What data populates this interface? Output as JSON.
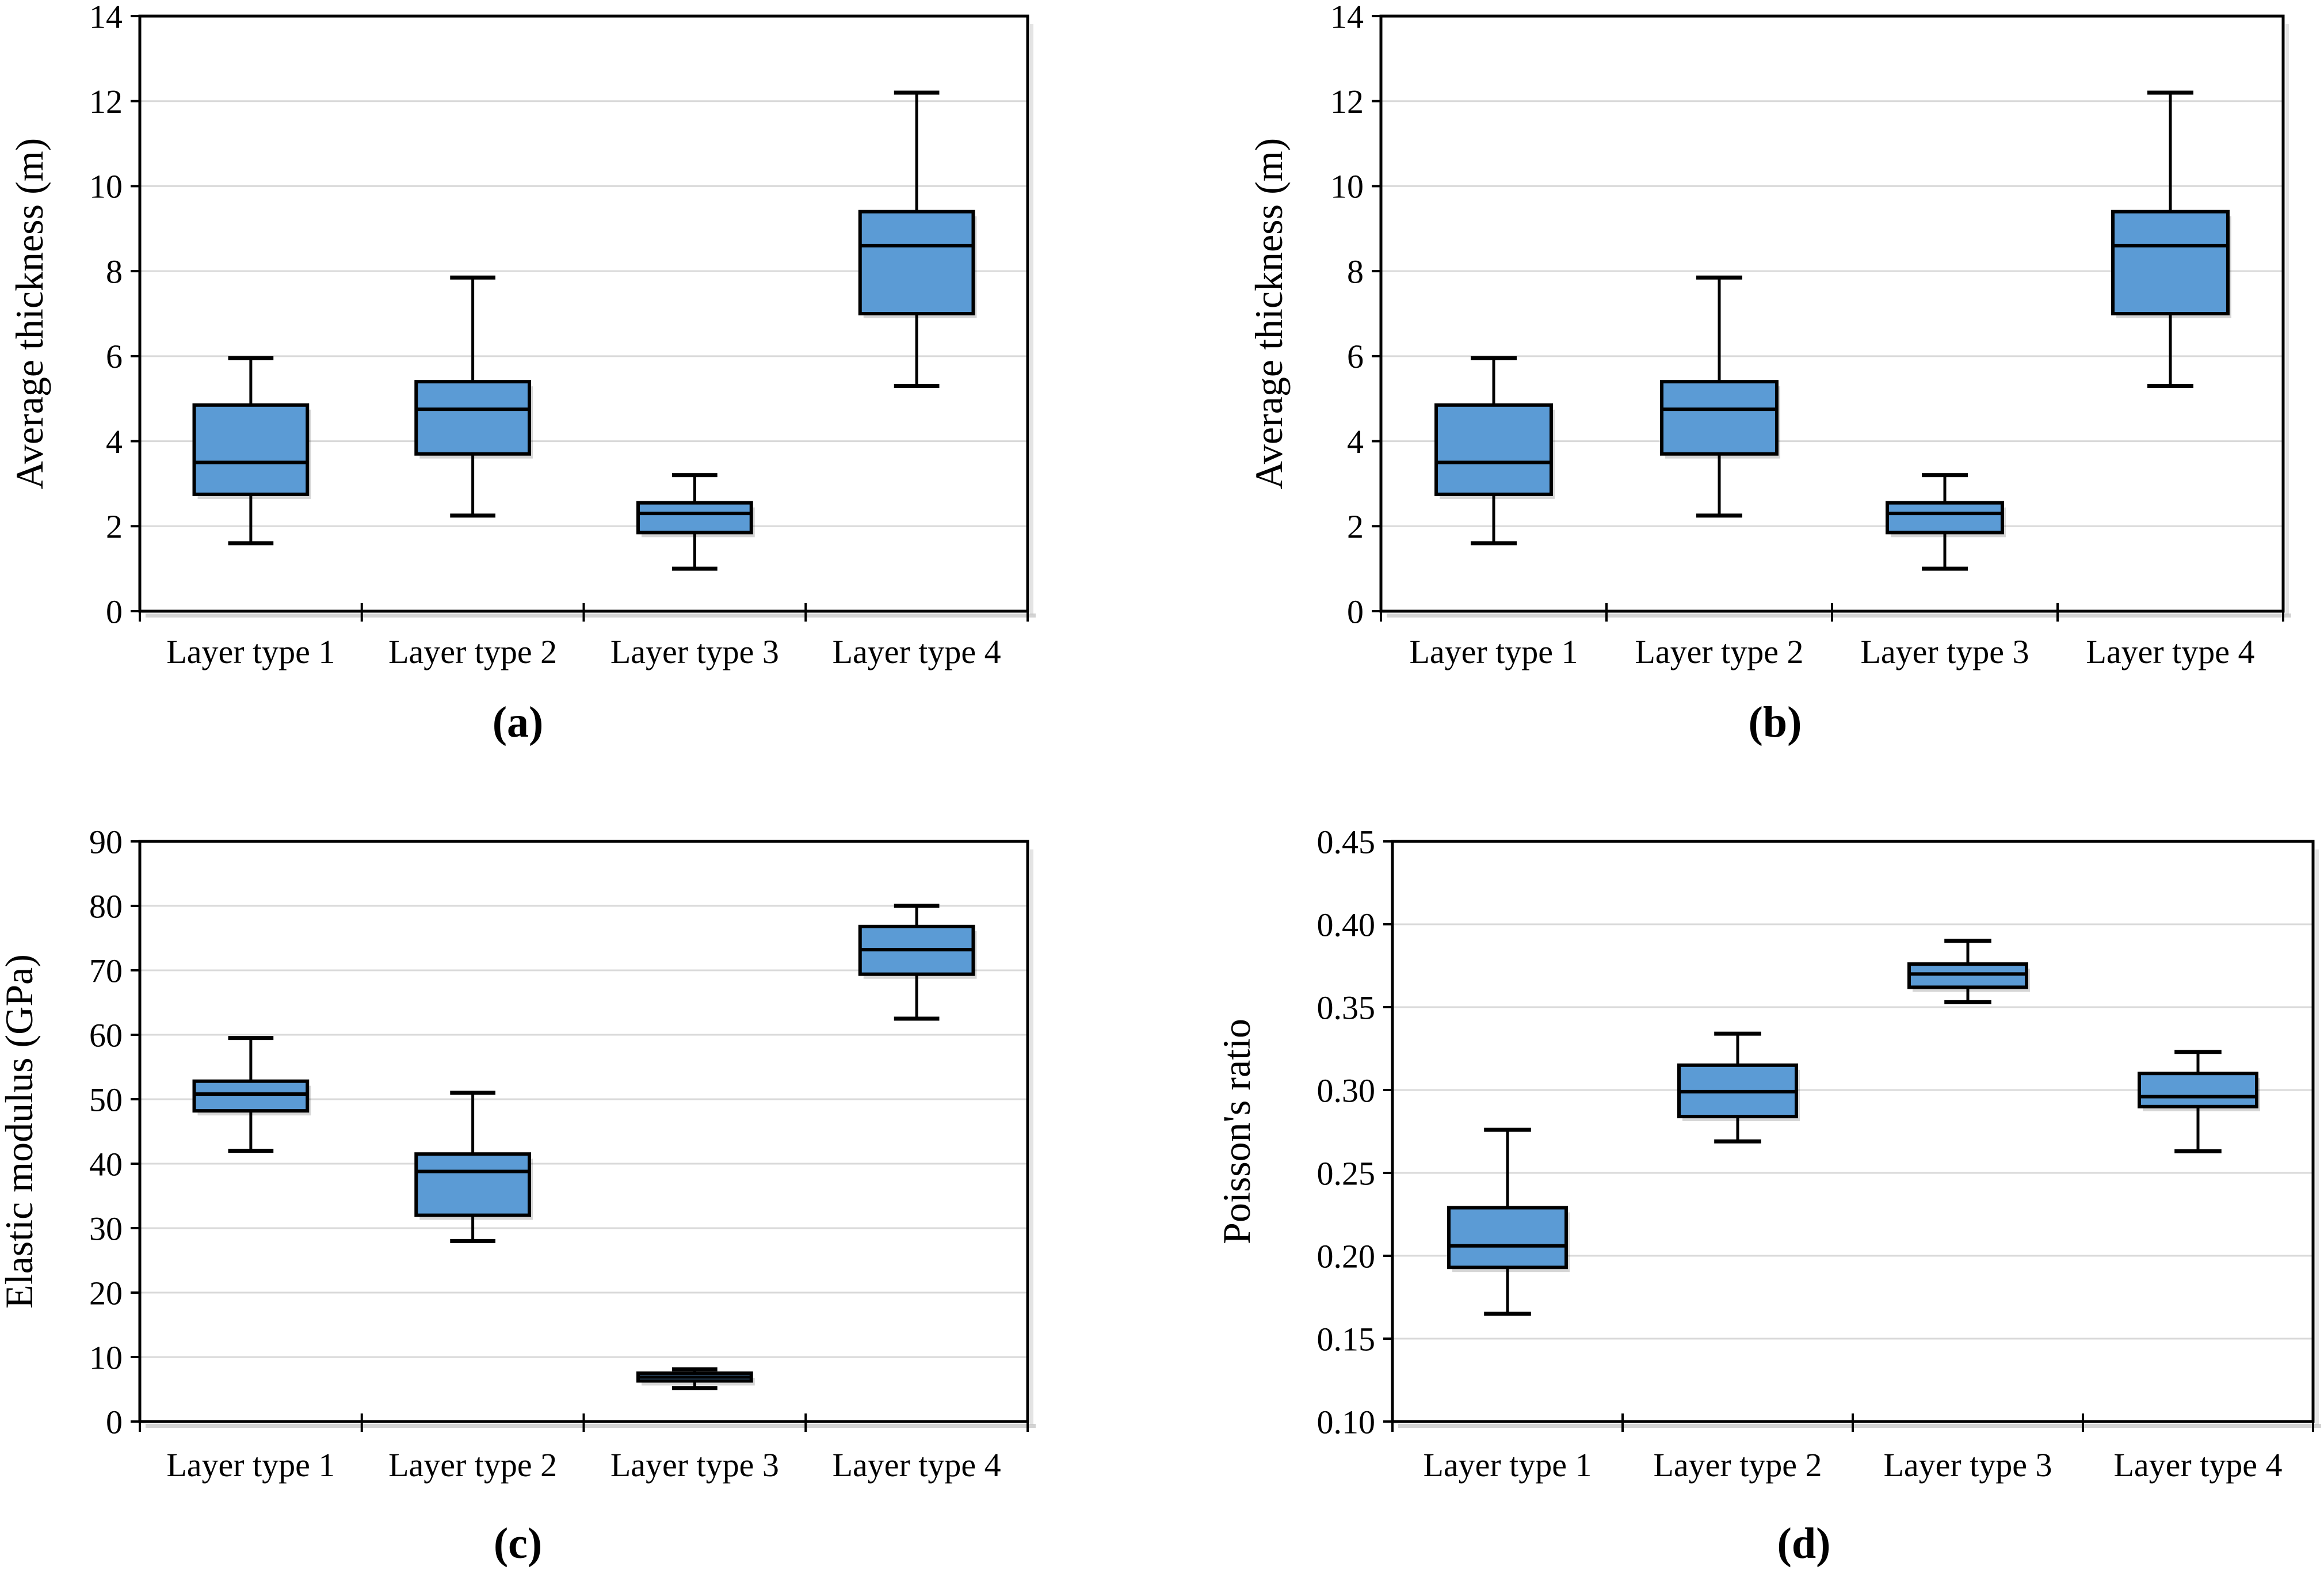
{
  "figure": {
    "background": "#ffffff",
    "panels": [
      "a",
      "b",
      "c",
      "d"
    ]
  },
  "style": {
    "box_fill": "#5B9BD5",
    "box_border": "#000000",
    "median_color": "#000000",
    "whisker_color": "#000000",
    "gridline_color": "#D9D9D9",
    "frame_color": "#000000",
    "shadow_color": "#C4C4C4",
    "text_color": "#000000"
  },
  "chart_data": [
    {
      "type": "boxplot",
      "panel": "a",
      "caption": "(a)",
      "ylabel": "Average thickness (m)",
      "ylim": [
        0,
        14
      ],
      "ytick_step": 2,
      "ytick_decimals": 0,
      "grid": true,
      "legend": "none",
      "categories": [
        "Layer type 1",
        "Layer type 2",
        "Layer type 3",
        "Layer type 4"
      ],
      "series": [
        {
          "category": "Layer type 1",
          "min": 1.6,
          "q1": 2.75,
          "median": 3.5,
          "q3": 4.85,
          "max": 5.95
        },
        {
          "category": "Layer type 2",
          "min": 2.25,
          "q1": 3.7,
          "median": 4.75,
          "q3": 5.4,
          "max": 7.85
        },
        {
          "category": "Layer type 3",
          "min": 1.0,
          "q1": 1.85,
          "median": 2.3,
          "q3": 2.55,
          "max": 3.2
        },
        {
          "category": "Layer type 4",
          "min": 5.3,
          "q1": 7.0,
          "median": 8.6,
          "q3": 9.4,
          "max": 12.2
        }
      ]
    },
    {
      "type": "boxplot",
      "panel": "b",
      "caption": "(b)",
      "ylabel": "Average thickness (m)",
      "ylim": [
        0,
        14
      ],
      "ytick_step": 2,
      "ytick_decimals": 0,
      "grid": true,
      "legend": "none",
      "categories": [
        "Layer type 1",
        "Layer type 2",
        "Layer type 3",
        "Layer type 4"
      ],
      "series": [
        {
          "category": "Layer type 1",
          "min": 1.6,
          "q1": 2.75,
          "median": 3.5,
          "q3": 4.85,
          "max": 5.95
        },
        {
          "category": "Layer type 2",
          "min": 2.25,
          "q1": 3.7,
          "median": 4.75,
          "q3": 5.4,
          "max": 7.85
        },
        {
          "category": "Layer type 3",
          "min": 1.0,
          "q1": 1.85,
          "median": 2.3,
          "q3": 2.55,
          "max": 3.2
        },
        {
          "category": "Layer type 4",
          "min": 5.3,
          "q1": 7.0,
          "median": 8.6,
          "q3": 9.4,
          "max": 12.2
        }
      ]
    },
    {
      "type": "boxplot",
      "panel": "c",
      "caption": "(c)",
      "ylabel": "Elastic modulus (GPa)",
      "ylim": [
        0,
        90
      ],
      "ytick_step": 10,
      "ytick_decimals": 0,
      "grid": true,
      "legend": "none",
      "categories": [
        "Layer type 1",
        "Layer type 2",
        "Layer type 3",
        "Layer type 4"
      ],
      "series": [
        {
          "category": "Layer type 1",
          "min": 42.0,
          "q1": 48.2,
          "median": 50.8,
          "q3": 52.8,
          "max": 59.5
        },
        {
          "category": "Layer type 2",
          "min": 28.0,
          "q1": 32.0,
          "median": 38.8,
          "q3": 41.5,
          "max": 51.0
        },
        {
          "category": "Layer type 3",
          "min": 5.2,
          "q1": 6.3,
          "median": 6.9,
          "q3": 7.5,
          "max": 8.1
        },
        {
          "category": "Layer type 4",
          "min": 62.5,
          "q1": 69.4,
          "median": 73.2,
          "q3": 76.8,
          "max": 80.0
        }
      ]
    },
    {
      "type": "boxplot",
      "panel": "d",
      "caption": "(d)",
      "ylabel": "Poisson's ratio",
      "ylim": [
        0.1,
        0.45
      ],
      "ytick_step": 0.05,
      "ytick_decimals": 2,
      "grid": true,
      "legend": "none",
      "categories": [
        "Layer type 1",
        "Layer type 2",
        "Layer type 3",
        "Layer type 4"
      ],
      "series": [
        {
          "category": "Layer type 1",
          "min": 0.165,
          "q1": 0.193,
          "median": 0.206,
          "q3": 0.229,
          "max": 0.276
        },
        {
          "category": "Layer type 2",
          "min": 0.269,
          "q1": 0.284,
          "median": 0.299,
          "q3": 0.315,
          "max": 0.334
        },
        {
          "category": "Layer type 3",
          "min": 0.353,
          "q1": 0.362,
          "median": 0.37,
          "q3": 0.376,
          "max": 0.39
        },
        {
          "category": "Layer type 4",
          "min": 0.263,
          "q1": 0.29,
          "median": 0.296,
          "q3": 0.31,
          "max": 0.323
        }
      ]
    }
  ]
}
